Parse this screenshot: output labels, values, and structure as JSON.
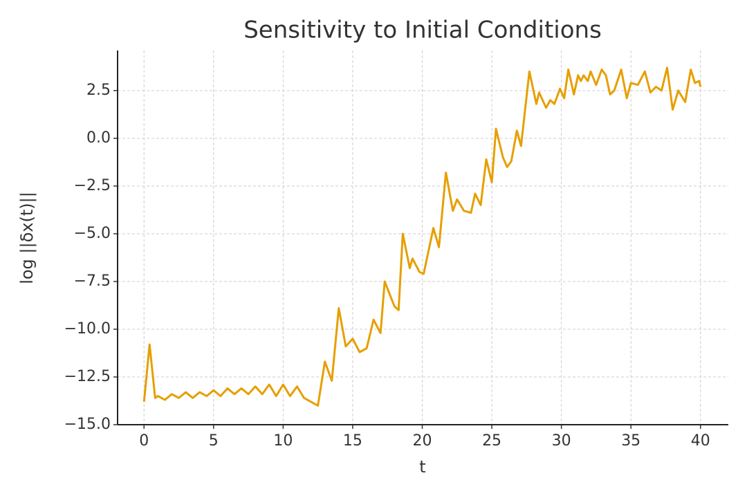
{
  "chart_data": {
    "type": "line",
    "title": "Sensitivity to Initial Conditions",
    "xlabel": "t",
    "ylabel": "log ||δx(t)||",
    "x": [
      0,
      0.4,
      0.8,
      1.0,
      1.5,
      2,
      2.5,
      3,
      3.5,
      4,
      4.5,
      5,
      5.5,
      6,
      6.5,
      7,
      7.5,
      8,
      8.5,
      9,
      9.5,
      10,
      10.5,
      11,
      11.5,
      12,
      12.5,
      13,
      13.5,
      14,
      14.5,
      15,
      15.5,
      16,
      16.5,
      17,
      17.3,
      18,
      18.3,
      18.6,
      19.1,
      19.3,
      19.8,
      20.1,
      20.8,
      21.2,
      21.7,
      22.2,
      22.5,
      23,
      23.5,
      23.8,
      24.2,
      24.6,
      25,
      25.3,
      25.8,
      26.1,
      26.4,
      26.8,
      27.1,
      27.7,
      28.2,
      28.4,
      28.9,
      29.2,
      29.5,
      29.9,
      30.2,
      30.5,
      30.9,
      31.2,
      31.4,
      31.6,
      31.9,
      32.1,
      32.5,
      32.9,
      33.2,
      33.5,
      33.8,
      34.3,
      34.7,
      35.0,
      35.5,
      36.0,
      36.4,
      36.8,
      37.2,
      37.6,
      38.0,
      38.4,
      38.9,
      39.3,
      39.6,
      39.9,
      40
    ],
    "series": [
      {
        "name": "log ||δx(t)||",
        "color": "#e69f00",
        "values": [
          -13.8,
          -10.8,
          -13.6,
          -13.5,
          -13.7,
          -13.4,
          -13.6,
          -13.3,
          -13.6,
          -13.3,
          -13.5,
          -13.2,
          -13.5,
          -13.1,
          -13.4,
          -13.1,
          -13.4,
          -13.0,
          -13.4,
          -12.9,
          -13.5,
          -12.9,
          -13.5,
          -13.0,
          -13.6,
          -13.8,
          -14.0,
          -11.7,
          -12.7,
          -8.9,
          -10.9,
          -10.5,
          -11.2,
          -11.0,
          -9.5,
          -10.2,
          -7.5,
          -8.8,
          -9.0,
          -5.0,
          -6.8,
          -6.3,
          -7.0,
          -7.1,
          -4.7,
          -5.7,
          -1.8,
          -3.8,
          -3.2,
          -3.8,
          -3.9,
          -2.9,
          -3.5,
          -1.1,
          -2.3,
          0.5,
          -1.0,
          -1.5,
          -1.2,
          0.4,
          -0.4,
          3.5,
          1.8,
          2.4,
          1.6,
          2.0,
          1.8,
          2.6,
          2.1,
          3.6,
          2.3,
          3.3,
          3.0,
          3.3,
          3.0,
          3.5,
          2.8,
          3.6,
          3.3,
          2.3,
          2.5,
          3.6,
          2.1,
          2.9,
          2.8,
          3.5,
          2.4,
          2.7,
          2.5,
          3.7,
          1.5,
          2.5,
          1.9,
          3.6,
          2.9,
          3.0,
          2.7
        ]
      }
    ],
    "xlim": [
      -1.9,
      42
    ],
    "ylim": [
      -15.0,
      4.6
    ],
    "xticks": [
      0,
      5,
      10,
      15,
      20,
      25,
      30,
      35,
      40
    ],
    "yticks": [
      {
        "value": -15,
        "label": "−15.0"
      },
      {
        "value": -12.5,
        "label": "−12.5"
      },
      {
        "value": -10,
        "label": "−10.0"
      },
      {
        "value": -7.5,
        "label": "−7.5"
      },
      {
        "value": -5,
        "label": "−5.0"
      },
      {
        "value": -2.5,
        "label": "−2.5"
      },
      {
        "value": 0,
        "label": "0.0"
      },
      2.5
    ],
    "grid": true
  }
}
